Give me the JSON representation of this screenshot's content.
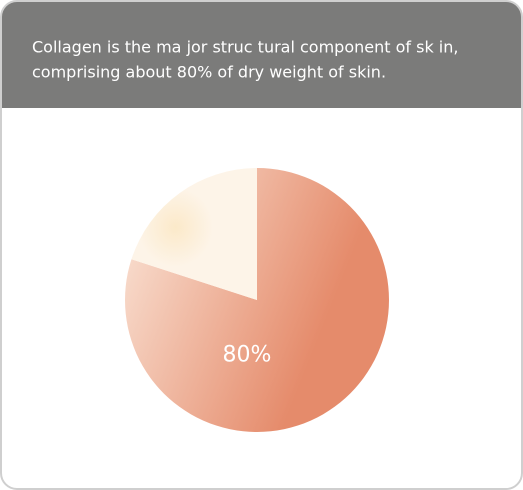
{
  "chart_data": {
    "type": "pie",
    "title": [
      "Collagen is the ma jor struc tural component of sk in,",
      "comprising about 80% of dry weight of skin."
    ],
    "values": [
      80,
      20
    ],
    "value_labels": [
      "80%",
      null
    ],
    "colors": [
      "#e58b6b",
      "#fdf4e8"
    ]
  }
}
